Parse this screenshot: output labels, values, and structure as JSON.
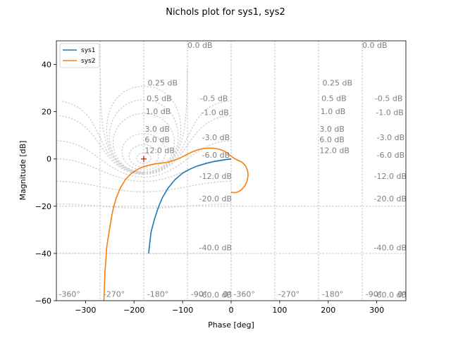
{
  "chart_data": {
    "type": "line",
    "title": "Nichols plot for sys1, sys2",
    "xlabel": "Phase [deg]",
    "ylabel": "Magnitude [dB]",
    "xlim": [
      -360,
      360
    ],
    "ylim": [
      -60,
      50
    ],
    "xticks": [
      -300,
      -200,
      -100,
      0,
      100,
      200,
      300
    ],
    "yticks": [
      -60,
      -40,
      -20,
      0,
      20,
      40
    ],
    "xtick_labels": [
      "−300",
      "−200",
      "−100",
      "0",
      "100",
      "200",
      "300"
    ],
    "ytick_labels": [
      "−60",
      "−40",
      "−20",
      "0",
      "20",
      "40"
    ],
    "legend_position": "upper-left",
    "grid": true,
    "critical_point": {
      "x": -180,
      "y": 0,
      "marker": "+",
      "color": "#ff0000"
    },
    "series": [
      {
        "name": "sys1",
        "color": "#1f77b4",
        "x": [
          -170,
          -165,
          -158,
          -150,
          -142,
          -130,
          -115,
          -100,
          -85,
          -70,
          -50,
          -35,
          -20,
          -10,
          -3,
          0
        ],
        "y": [
          -40,
          -31,
          -25.5,
          -20.5,
          -16.5,
          -12.4,
          -8.6,
          -6.0,
          -4.3,
          -3.0,
          -1.8,
          -1.1,
          -0.6,
          -0.25,
          -0.05,
          0
        ]
      },
      {
        "name": "sys2",
        "color": "#f97f0e",
        "x": [
          -262,
          -260,
          -256,
          -250,
          -244,
          -237,
          -228,
          -218,
          -206,
          -192,
          -180,
          -165,
          -150,
          -138,
          -128,
          -118,
          -106,
          -94,
          -82,
          -70,
          -58,
          -46,
          -35,
          -24,
          -14,
          -5,
          3,
          12,
          22,
          30,
          34,
          35,
          33,
          28,
          20,
          11,
          3,
          0
        ],
        "y": [
          -60,
          -48,
          -37,
          -29,
          -22,
          -16.7,
          -12.2,
          -8.8,
          -6.2,
          -4.3,
          -3.2,
          -2.4,
          -1.9,
          -1.6,
          -1.2,
          -0.6,
          0.3,
          1.6,
          2.8,
          3.8,
          4.4,
          4.6,
          4.5,
          4.1,
          3.3,
          2.0,
          0.7,
          -0.4,
          -1.3,
          -3.0,
          -5.0,
          -7.0,
          -9.3,
          -11.5,
          -13.3,
          -14.2,
          -14.2,
          -14.0
        ]
      }
    ],
    "grid_labels": {
      "magnitude": [
        "0.0 dB",
        "0.25 dB",
        "0.5 dB",
        "1.0 dB",
        "3.0 dB",
        "6.0 dB",
        "12.0 dB",
        "-0.5 dB",
        "-1.0 dB",
        "-3.0 dB",
        "-6.0 dB",
        "-12.0 dB",
        "-20.0 dB",
        "-40.0 dB",
        "-60.0 dB"
      ],
      "phase": [
        "-360°",
        "-270°",
        "-180°",
        "-90°",
        "0°"
      ]
    }
  }
}
